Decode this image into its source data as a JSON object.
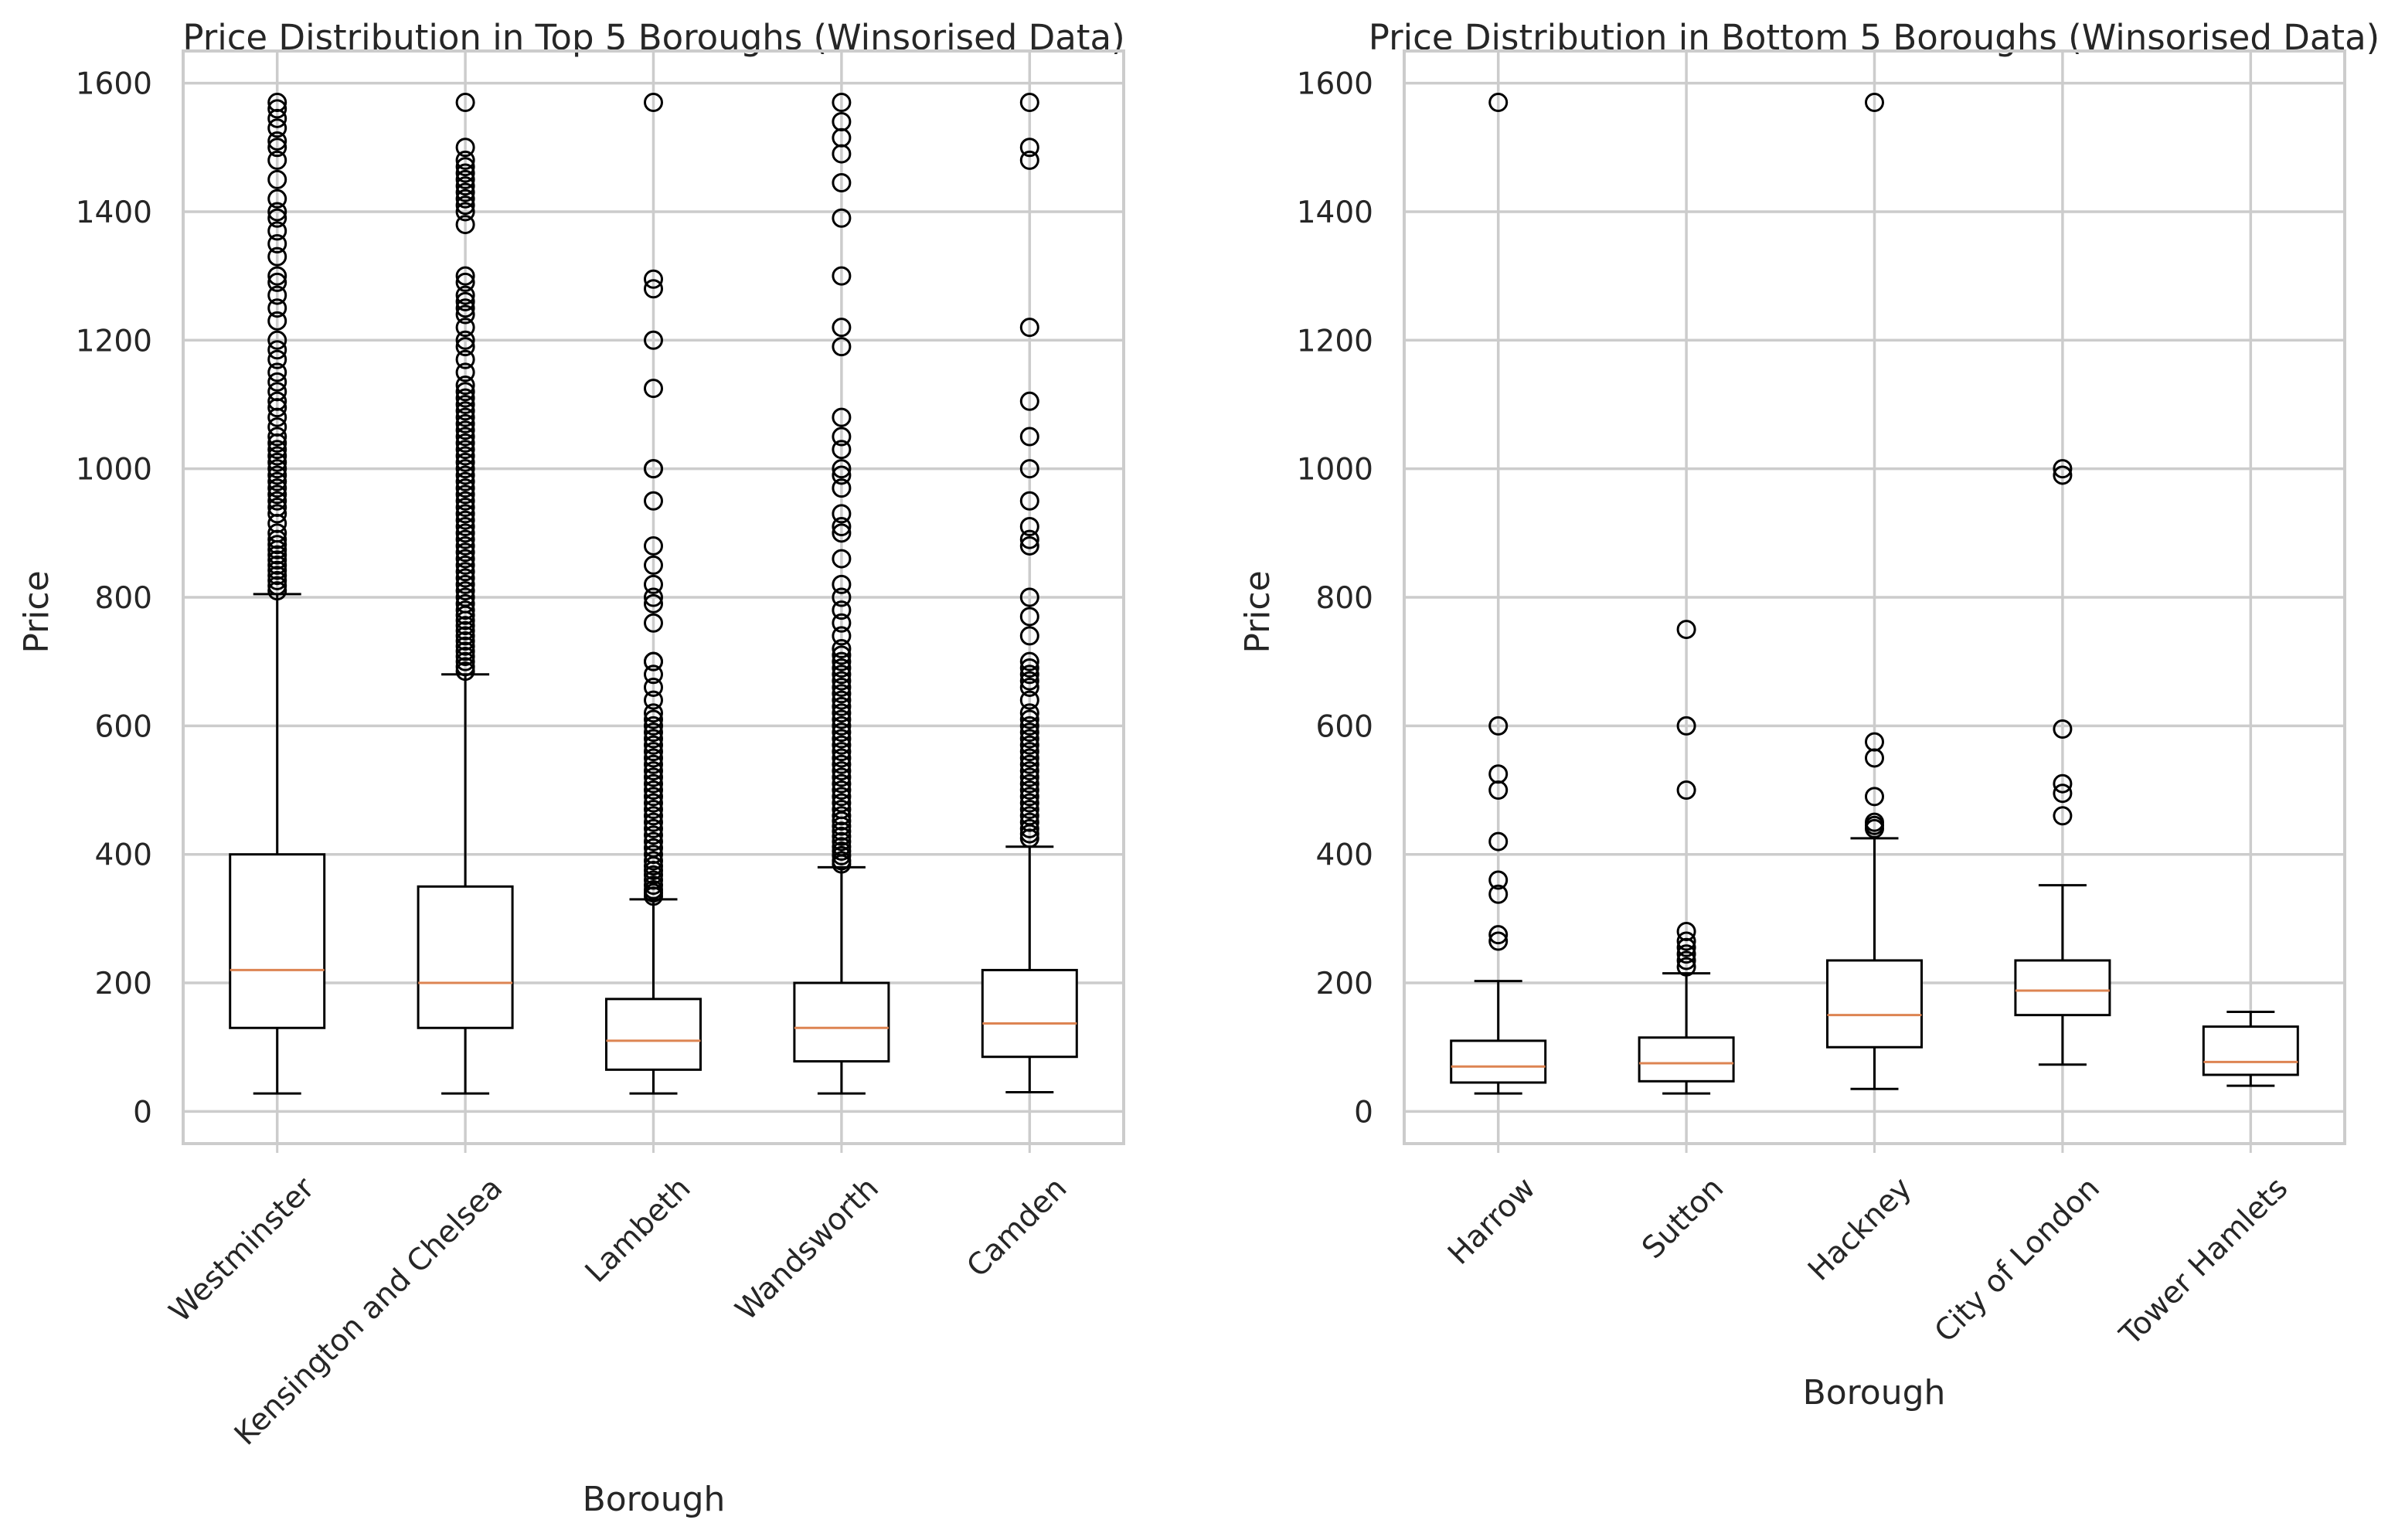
{
  "colors": {
    "box": "#000000",
    "median": "#dd8452",
    "grid": "#cccccc",
    "text": "#262626",
    "background": "#ffffff"
  },
  "chart_data": [
    {
      "type": "box",
      "title": "Price Distribution in Top 5 Boroughs (Winsorised Data)",
      "xlabel": "Borough",
      "ylabel": "Price",
      "ylim": [
        -50,
        1650
      ],
      "yticks": [
        0,
        200,
        400,
        600,
        800,
        1000,
        1200,
        1400,
        1600
      ],
      "grid": true,
      "categories": [
        "Westminster",
        "Kensington and Chelsea",
        "Lambeth",
        "Wandsworth",
        "Camden"
      ],
      "boxes": [
        {
          "category": "Westminster",
          "whislo": 28,
          "q1": 130,
          "med": 220,
          "q3": 400,
          "whishi": 805,
          "fliers": [
            810,
            818,
            826,
            834,
            842,
            850,
            858,
            866,
            874,
            882,
            890,
            900,
            915,
            930,
            940,
            950,
            960,
            970,
            980,
            990,
            1000,
            1010,
            1020,
            1030,
            1040,
            1050,
            1065,
            1080,
            1095,
            1105,
            1120,
            1135,
            1150,
            1170,
            1185,
            1200,
            1230,
            1250,
            1270,
            1290,
            1300,
            1330,
            1350,
            1370,
            1390,
            1400,
            1420,
            1450,
            1480,
            1500,
            1510,
            1530,
            1545,
            1560,
            1570
          ]
        },
        {
          "category": "Kensington and Chelsea",
          "whislo": 28,
          "q1": 130,
          "med": 200,
          "q3": 350,
          "whishi": 680,
          "fliers": [
            685,
            692,
            700,
            708,
            716,
            724,
            732,
            740,
            748,
            756,
            764,
            772,
            780,
            790,
            800,
            810,
            820,
            830,
            840,
            850,
            860,
            870,
            880,
            890,
            900,
            910,
            920,
            930,
            940,
            950,
            960,
            970,
            980,
            990,
            1000,
            1010,
            1020,
            1030,
            1040,
            1050,
            1060,
            1070,
            1080,
            1090,
            1100,
            1110,
            1120,
            1130,
            1150,
            1170,
            1190,
            1200,
            1220,
            1240,
            1250,
            1260,
            1270,
            1290,
            1300,
            1380,
            1400,
            1410,
            1420,
            1430,
            1440,
            1450,
            1460,
            1470,
            1480,
            1500,
            1570
          ]
        },
        {
          "category": "Lambeth",
          "whislo": 28,
          "q1": 65,
          "med": 110,
          "q3": 175,
          "whishi": 330,
          "fliers": [
            335,
            340,
            345,
            352,
            360,
            368,
            375,
            382,
            390,
            400,
            410,
            420,
            430,
            440,
            450,
            460,
            470,
            480,
            490,
            500,
            510,
            520,
            530,
            540,
            550,
            560,
            570,
            580,
            590,
            600,
            610,
            620,
            640,
            660,
            680,
            700,
            700,
            760,
            790,
            800,
            820,
            850,
            880,
            950,
            1000,
            1000,
            1125,
            1200,
            1280,
            1295,
            1570
          ]
        },
        {
          "category": "Wandsworth",
          "whislo": 28,
          "q1": 78,
          "med": 130,
          "q3": 200,
          "whishi": 380,
          "fliers": [
            385,
            390,
            398,
            405,
            412,
            420,
            428,
            436,
            444,
            452,
            460,
            470,
            480,
            490,
            500,
            510,
            520,
            530,
            540,
            550,
            560,
            570,
            580,
            590,
            600,
            610,
            620,
            630,
            640,
            650,
            660,
            670,
            680,
            690,
            700,
            710,
            720,
            740,
            760,
            780,
            800,
            820,
            860,
            900,
            910,
            930,
            970,
            990,
            1000,
            1030,
            1050,
            1080,
            1190,
            1220,
            1300,
            1390,
            1445,
            1490,
            1515,
            1540,
            1570
          ]
        },
        {
          "category": "Camden",
          "whislo": 30,
          "q1": 85,
          "med": 137,
          "q3": 220,
          "whishi": 412,
          "fliers": [
            425,
            432,
            440,
            450,
            460,
            470,
            480,
            490,
            500,
            510,
            520,
            530,
            540,
            550,
            560,
            570,
            580,
            590,
            600,
            610,
            620,
            640,
            660,
            670,
            680,
            690,
            700,
            740,
            770,
            800,
            880,
            890,
            910,
            950,
            1000,
            1050,
            1105,
            1220,
            1480,
            1500,
            1570
          ]
        }
      ]
    },
    {
      "type": "box",
      "title": "Price Distribution in Bottom 5 Boroughs (Winsorised Data)",
      "xlabel": "Borough",
      "ylabel": "Price",
      "ylim": [
        -50,
        1650
      ],
      "yticks": [
        0,
        200,
        400,
        600,
        800,
        1000,
        1200,
        1400,
        1600
      ],
      "grid": true,
      "categories": [
        "Harrow",
        "Sutton",
        "Hackney",
        "City of London",
        "Tower Hamlets"
      ],
      "boxes": [
        {
          "category": "Harrow",
          "whislo": 28,
          "q1": 45,
          "med": 70,
          "q3": 110,
          "whishi": 203,
          "fliers": [
            265,
            275,
            338,
            360,
            420,
            500,
            525,
            600,
            1570
          ]
        },
        {
          "category": "Sutton",
          "whislo": 28,
          "q1": 47,
          "med": 75,
          "q3": 115,
          "whishi": 215,
          "fliers": [
            225,
            235,
            245,
            255,
            265,
            280,
            500,
            600,
            750
          ]
        },
        {
          "category": "Hackney",
          "whislo": 35,
          "q1": 100,
          "med": 150,
          "q3": 235,
          "whishi": 425,
          "fliers": [
            440,
            445,
            450,
            490,
            550,
            575,
            1570
          ]
        },
        {
          "category": "City of London",
          "whislo": 73,
          "q1": 150,
          "med": 188,
          "q3": 235,
          "whishi": 352,
          "fliers": [
            460,
            495,
            510,
            595,
            990,
            1000
          ]
        },
        {
          "category": "Tower Hamlets",
          "whislo": 40,
          "q1": 57,
          "med": 77,
          "q3": 132,
          "whishi": 155,
          "fliers": []
        }
      ]
    }
  ]
}
